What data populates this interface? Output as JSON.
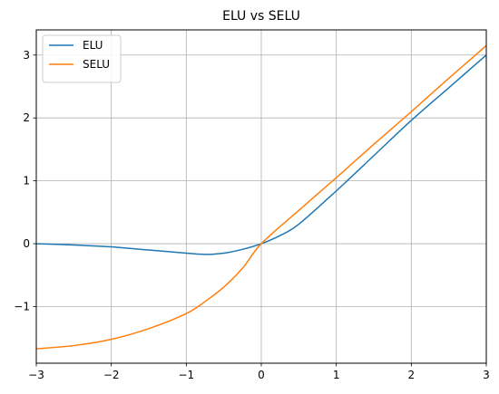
{
  "chart_data": {
    "type": "line",
    "title": "ELU vs SELU",
    "xlabel": "",
    "ylabel": "",
    "xlim": [
      -3,
      3
    ],
    "ylim": [
      -1.9,
      3.4
    ],
    "xticks": [
      -3,
      -2,
      -1,
      0,
      1,
      2,
      3
    ],
    "xtick_labels": [
      "−3",
      "−2",
      "−1",
      "0",
      "1",
      "2",
      "3"
    ],
    "yticks": [
      -1,
      0,
      1,
      2,
      3
    ],
    "ytick_labels": [
      "−1",
      "0",
      "1",
      "2",
      "3"
    ],
    "grid": true,
    "legend_position": "top-left",
    "series": [
      {
        "name": "ELU",
        "color": "#1f77b4",
        "x": [
          -3.0,
          -2.5,
          -2.0,
          -1.5,
          -1.0,
          -0.75,
          -0.5,
          -0.25,
          0.0,
          0.25,
          0.5,
          1.0,
          1.5,
          2.0,
          2.5,
          3.0
        ],
        "y": [
          0.0,
          -0.02,
          -0.05,
          -0.1,
          -0.15,
          -0.17,
          -0.15,
          -0.09,
          0.0,
          0.13,
          0.31,
          0.84,
          1.4,
          1.96,
          2.48,
          3.0
        ]
      },
      {
        "name": "SELU",
        "color": "#ff7f0e",
        "x": [
          -3.0,
          -2.5,
          -2.0,
          -1.5,
          -1.0,
          -0.75,
          -0.5,
          -0.25,
          0.0,
          0.5,
          1.0,
          1.5,
          2.0,
          2.5,
          3.0
        ],
        "y": [
          -1.67,
          -1.62,
          -1.52,
          -1.35,
          -1.11,
          -0.92,
          -0.69,
          -0.39,
          0.0,
          0.53,
          1.05,
          1.58,
          2.1,
          2.63,
          3.15
        ]
      }
    ]
  }
}
